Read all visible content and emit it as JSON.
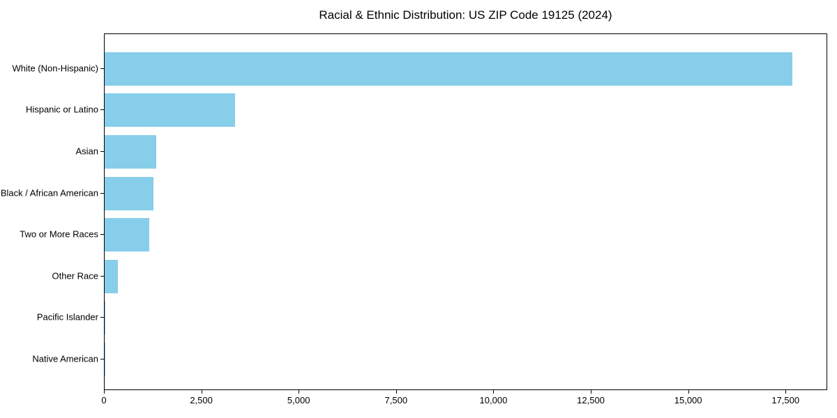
{
  "chart_data": {
    "type": "bar",
    "orientation": "horizontal",
    "title": "Racial & Ethnic Distribution: US ZIP Code 19125 (2024)",
    "categories": [
      "White (Non-Hispanic)",
      "Hispanic or Latino",
      "Asian",
      "Black / African American",
      "Two or More Races",
      "Other Race",
      "Pacific Islander",
      "Native American"
    ],
    "values": [
      17650,
      3350,
      1330,
      1250,
      1140,
      335,
      25,
      8
    ],
    "xlabel": "",
    "ylabel": "",
    "xlim": [
      0,
      18570
    ],
    "x_ticks": [
      0,
      2500,
      5000,
      7500,
      10000,
      12500,
      15000,
      17500
    ],
    "x_tick_labels": [
      "0",
      "2,500",
      "5,000",
      "7,500",
      "10,000",
      "12,500",
      "15,000",
      "17,500"
    ],
    "bar_color": "#87CEEB",
    "spine_color": "#000000",
    "text_color": "#000000",
    "grid": false,
    "legend": null,
    "background": "#ffffff"
  }
}
